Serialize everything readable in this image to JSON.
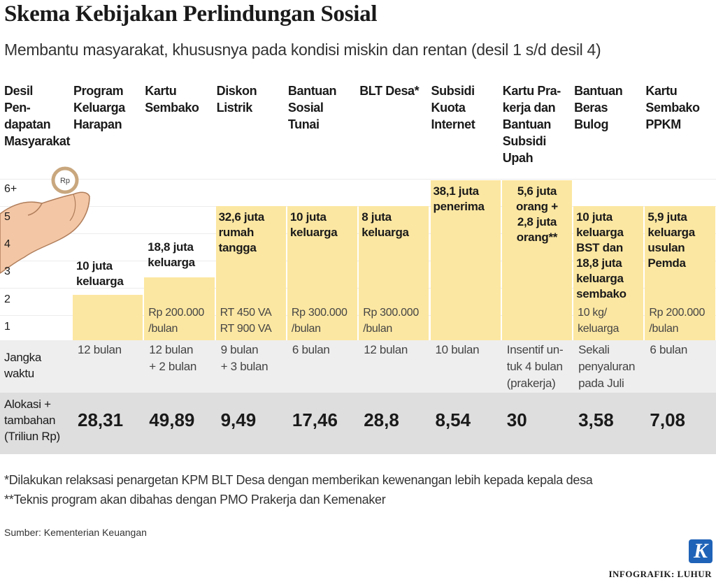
{
  "title": "Skema Kebijakan Perlindungan Sosial",
  "subtitle": "Membantu masyarakat, khususnya pada kondisi miskin dan rentan (desil 1 s/d desil 4)",
  "header_label": "Desil\nPen-\ndapatan\nMasyarakat",
  "deciles": [
    "6+",
    "5",
    "4",
    "3",
    "2",
    "1"
  ],
  "row_labels": {
    "duration": "Jangka\nwaktu",
    "allocation": "Alokasi +\ntambahan\n(Triliun Rp)"
  },
  "programs": [
    {
      "name": "Program\nKeluarga\nHarapan",
      "recipients": "10 juta\nkeluarga",
      "duration": "12 bulan",
      "allocation": "28,31"
    },
    {
      "name": "Kartu\nSembako",
      "recipients": "18,8 juta\nkeluarga",
      "detail": "Rp 200.000\n/bulan",
      "duration": "12 bulan\n+ 2 bulan",
      "allocation": "49,89"
    },
    {
      "name": "Diskon\nListrik",
      "recipients": "32,6 juta\nrumah\ntangga",
      "detail": "RT 450 VA\nRT 900 VA",
      "duration": "9 bulan\n+ 3 bulan",
      "allocation": "9,49"
    },
    {
      "name": "Bantuan\nSosial\nTunai",
      "recipients": "10 juta\nkeluarga",
      "detail": "Rp 300.000\n/bulan",
      "duration": "6 bulan",
      "allocation": "17,46"
    },
    {
      "name": "BLT Desa*",
      "recipients": "8 juta\nkeluarga",
      "detail": "Rp 300.000\n/bulan",
      "duration": "12 bulan",
      "allocation": "28,8"
    },
    {
      "name": "Subsidi\nKuota\nInternet",
      "recipients": "38,1 juta\npenerima",
      "duration": "10 bulan",
      "allocation": "8,54"
    },
    {
      "name": "Kartu Pra-\nkerja dan\nBantuan\nSubsidi\nUpah",
      "recipients": "5,6 juta\norang +\n2,8 juta\norang**",
      "duration": "Insentif un-\ntuk 4 bulan\n(prakerja)",
      "allocation": "30"
    },
    {
      "name": "Bantuan\nBeras\nBulog",
      "recipients": "10 juta\nkeluarga\nBST dan\n18,8 juta\nkeluarga\nsembako",
      "detail": "10 kg/\nkeluarga",
      "duration": "Sekali\npenyaluran\npada Juli",
      "allocation": "3,58"
    },
    {
      "name": "Kartu\nSembako\nPPKM",
      "recipients": "5,9 juta\nkeluarga\nusulan\nPemda",
      "detail": "Rp 200.000\n/bulan",
      "duration": "6 bulan",
      "allocation": "7,08"
    }
  ],
  "notes": [
    "*Dilakukan relaksasi penargetan KPM BLT Desa dengan memberikan kewenangan lebih kepada kepala desa",
    "**Teknis program akan dibahas dengan PMO Prakerja dan Kemenaker"
  ],
  "source": "Sumber: Kementerian Keuangan",
  "logo": "K",
  "credit": "INFOGRAFIK: LUHUR"
}
